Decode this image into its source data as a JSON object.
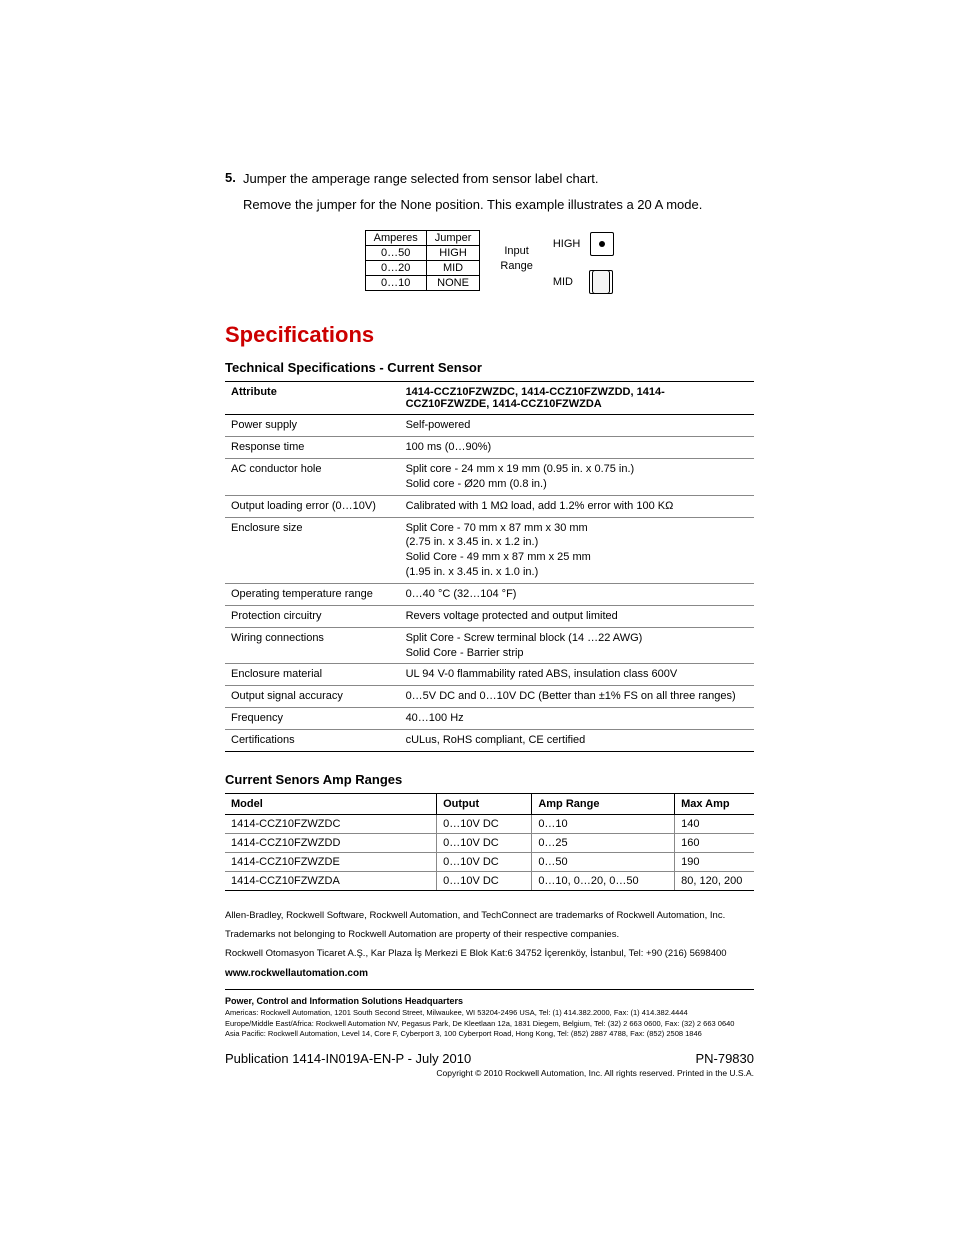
{
  "step": {
    "number": "5.",
    "text": "Jumper the amperage range selected from sensor label chart.",
    "subtext": "Remove the jumper for the None position. This example illustrates a 20 A mode."
  },
  "jumper_chart": {
    "headers": [
      "Amperes",
      "Jumper"
    ],
    "rows": [
      [
        "0…50",
        "HIGH"
      ],
      [
        "0…20",
        "MID"
      ],
      [
        "0…10",
        "NONE"
      ]
    ],
    "input_label_line1": "Input",
    "input_label_line2": "Range",
    "high_label": "HIGH",
    "mid_label": "MID"
  },
  "specifications_title": "Specifications",
  "tech_spec": {
    "title": "Technical Specifications - Current Sensor",
    "header_attr": "Attribute",
    "header_val": "1414-CCZ10FZWZDC, 1414-CCZ10FZWZDD, 1414-CCZ10FZWZDE, 1414-CCZ10FZWZDA",
    "rows": [
      {
        "attr": "Power supply",
        "val": "Self-powered"
      },
      {
        "attr": "Response time",
        "val": "100 ms (0…90%)"
      },
      {
        "attr": "AC conductor hole",
        "val": "Split core - 24 mm x 19 mm (0.95 in. x 0.75 in.)\nSolid core - Ø20 mm (0.8 in.)"
      },
      {
        "attr": "Output loading error (0…10V)",
        "val": "Calibrated with 1 MΩ load, add 1.2% error with 100 KΩ"
      },
      {
        "attr": "Enclosure size",
        "val": "Split Core - 70 mm x 87 mm x 30 mm\n(2.75 in. x 3.45 in. x 1.2 in.)\nSolid Core - 49 mm x 87 mm x 25 mm\n(1.95 in. x 3.45 in. x 1.0 in.)"
      },
      {
        "attr": "Operating temperature range",
        "val": "0…40 °C (32…104 °F)"
      },
      {
        "attr": "Protection circuitry",
        "val": "Revers voltage protected and output limited"
      },
      {
        "attr": "Wiring connections",
        "val": "Split Core - Screw terminal block (14 …22 AWG)\nSolid Core - Barrier strip"
      },
      {
        "attr": "Enclosure material",
        "val": "UL 94 V-0 flammability rated ABS, insulation class 600V"
      },
      {
        "attr": "Output signal accuracy",
        "val": "0…5V DC and 0…10V DC (Better than ±1% FS on all three ranges)"
      },
      {
        "attr": "Frequency",
        "val": "40…100 Hz"
      },
      {
        "attr": "Certifications",
        "val": "cULus, RoHS compliant, CE certified"
      }
    ]
  },
  "amp_ranges": {
    "title": "Current Senors Amp Ranges",
    "headers": [
      "Model",
      "Output",
      "Amp Range",
      "Max Amp"
    ],
    "rows": [
      [
        "1414-CCZ10FZWZDC",
        "0…10V DC",
        "0…10",
        "140"
      ],
      [
        "1414-CCZ10FZWZDD",
        "0…10V DC",
        "0…25",
        "160"
      ],
      [
        "1414-CCZ10FZWZDE",
        "0…10V DC",
        "0…50",
        "190"
      ],
      [
        "1414-CCZ10FZWZDA",
        "0…10V DC",
        "0…10, 0…20, 0…50",
        "80, 120, 200"
      ]
    ]
  },
  "footer": {
    "trademark1": "Allen-Bradley, Rockwell Software, Rockwell Automation, and TechConnect are trademarks of Rockwell Automation, Inc.",
    "trademark2": "Trademarks not belonging to Rockwell Automation are property of their respective companies.",
    "turkey": "Rockwell Otomasyon Ticaret A.Ş., Kar Plaza İş Merkezi E Blok Kat:6 34752 İçerenköy, İstanbul, Tel: +90 (216) 5698400",
    "website": "www.rockwellautomation.com",
    "hq_head": "Power, Control and Information Solutions Headquarters",
    "hq1": "Americas: Rockwell Automation, 1201 South Second Street, Milwaukee, WI 53204-2496 USA, Tel: (1) 414.382.2000, Fax: (1) 414.382.4444",
    "hq2": "Europe/Middle East/Africa: Rockwell Automation NV, Pegasus Park, De Kleetlaan 12a, 1831 Diegem, Belgium, Tel: (32) 2 663 0600, Fax: (32) 2 663 0640",
    "hq3": "Asia Pacific: Rockwell Automation, Level 14, Core F, Cyberport 3, 100 Cyberport Road, Hong Kong, Tel: (852) 2887 4788, Fax: (852) 2508 1846",
    "publication": "Publication 1414-IN019A-EN-P - July 2010",
    "pn": "PN-79830",
    "copyright": "Copyright © 2010 Rockwell Automation, Inc. All rights reserved. Printed in the U.S.A."
  }
}
